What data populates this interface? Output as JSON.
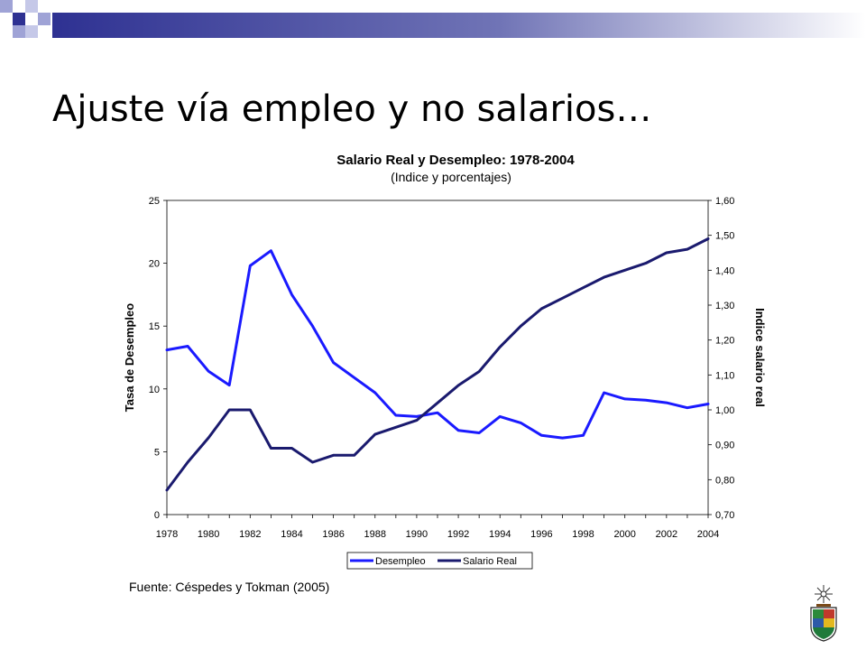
{
  "slide": {
    "title": "Ajuste vía empleo y no salarios…",
    "source": "Fuente: Céspedes y Tokman (2005)"
  },
  "colors": {
    "desempleo": "#1a1aff",
    "salario": "#1a1a6e",
    "header_bar": "#2e3192",
    "header_squares": "#9fa3d6"
  },
  "chart_data": {
    "type": "line",
    "title": "Salario Real y Desempleo: 1978-2004",
    "subtitle": "(Indice y porcentajes)",
    "ylabel": "Tasa de Desempleo",
    "y2label": "Indice salario real",
    "xlim": [
      1978,
      2004
    ],
    "ylim": [
      0,
      25
    ],
    "y2lim": [
      0.7,
      1.6
    ],
    "x_ticks": [
      "1978",
      "1980",
      "1982",
      "1984",
      "1986",
      "1988",
      "1990",
      "1992",
      "1994",
      "1996",
      "1998",
      "2000",
      "2002",
      "2004"
    ],
    "y_ticks": [
      "0",
      "5",
      "10",
      "15",
      "20",
      "25"
    ],
    "y2_ticks": [
      "0,70",
      "0,80",
      "0,90",
      "1,00",
      "1,10",
      "1,20",
      "1,30",
      "1,40",
      "1,50",
      "1,60"
    ],
    "legend_position": "bottom",
    "x": [
      1978,
      1979,
      1980,
      1981,
      1982,
      1983,
      1984,
      1985,
      1986,
      1987,
      1988,
      1989,
      1990,
      1991,
      1992,
      1993,
      1994,
      1995,
      1996,
      1997,
      1998,
      1999,
      2000,
      2001,
      2002,
      2003,
      2004
    ],
    "series": [
      {
        "name": "Desempleo",
        "axis": "left",
        "values": [
          13.1,
          13.4,
          11.4,
          10.3,
          19.8,
          21.0,
          17.5,
          15.0,
          12.1,
          10.9,
          9.7,
          7.9,
          7.8,
          8.1,
          6.7,
          6.5,
          7.8,
          7.3,
          6.3,
          6.1,
          6.3,
          9.7,
          9.2,
          9.1,
          8.9,
          8.5,
          8.8
        ]
      },
      {
        "name": "Salario Real",
        "axis": "right",
        "values": [
          0.77,
          0.85,
          0.92,
          1.0,
          1.0,
          0.89,
          0.89,
          0.85,
          0.87,
          0.87,
          0.93,
          0.95,
          0.97,
          1.02,
          1.07,
          1.11,
          1.18,
          1.24,
          1.29,
          1.32,
          1.35,
          1.38,
          1.4,
          1.42,
          1.45,
          1.46,
          1.49
        ]
      }
    ]
  }
}
